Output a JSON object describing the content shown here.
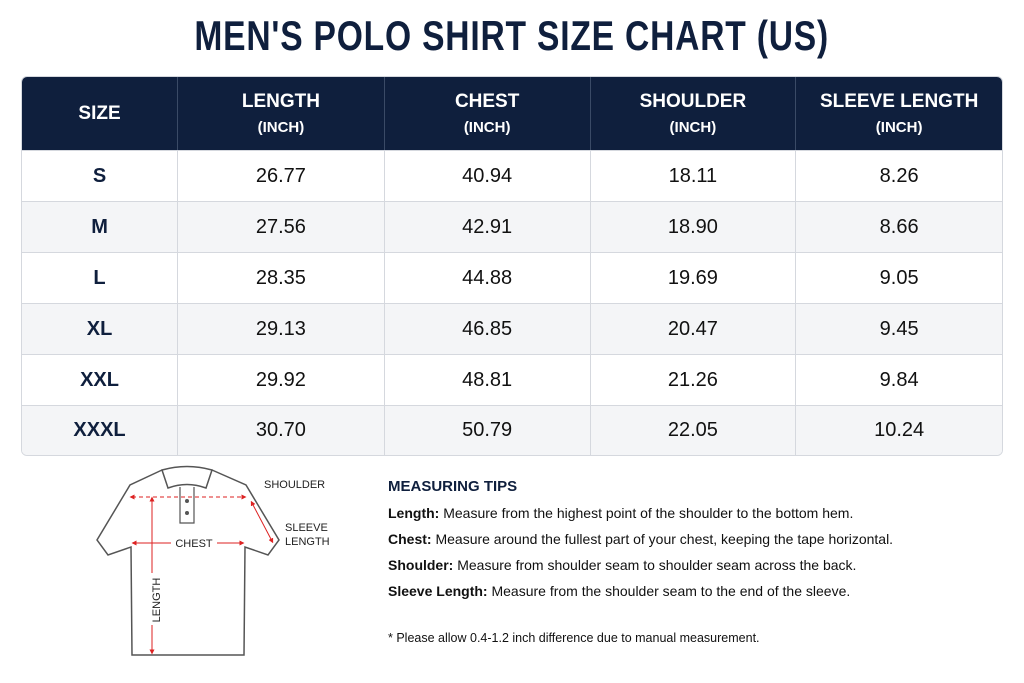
{
  "header": {
    "title": "MEN'S POLO SHIRT SIZE CHART (US)"
  },
  "table": {
    "columns": [
      {
        "label": "SIZE"
      },
      {
        "label": "LENGTH",
        "unit": "(INCH)"
      },
      {
        "label": "CHEST",
        "unit": "(INCH)"
      },
      {
        "label": "SHOULDER",
        "unit": "(INCH)"
      },
      {
        "label": "SLEEVE LENGTH",
        "unit": "(INCH)"
      }
    ],
    "rows": [
      [
        "S",
        "26.77",
        "40.94",
        "18.11",
        "8.26"
      ],
      [
        "M",
        "27.56",
        "42.91",
        "18.90",
        "8.66"
      ],
      [
        "L",
        "28.35",
        "44.88",
        "19.69",
        "9.05"
      ],
      [
        "XL",
        "29.13",
        "46.85",
        "20.47",
        "9.45"
      ],
      [
        "XXL",
        "29.92",
        "48.81",
        "21.26",
        "9.84"
      ],
      [
        "XXXL",
        "30.70",
        "50.79",
        "22.05",
        "10.24"
      ]
    ]
  },
  "diagram": {
    "shoulder": "SHOULDER",
    "sleeve_length": [
      "SLEEVE",
      "LENGTH"
    ],
    "chest": "CHEST",
    "length": "LENGTH"
  },
  "tips": {
    "title": "MEASURING TIPS",
    "items": [
      {
        "term": "Length:",
        "text": "Measure from the highest point of the shoulder to the bottom hem."
      },
      {
        "term": "Chest:",
        "text": "Measure around the fullest part of your chest, keeping the tape horizontal."
      },
      {
        "term": "Shoulder:",
        "text": "Measure from shoulder seam to shoulder seam across the back."
      },
      {
        "term": "Sleeve Length:",
        "text": "Measure from the shoulder seam to the end of the sleeve."
      }
    ],
    "note": "* Please allow 0.4-1.2 inch difference due to manual measurement."
  }
}
